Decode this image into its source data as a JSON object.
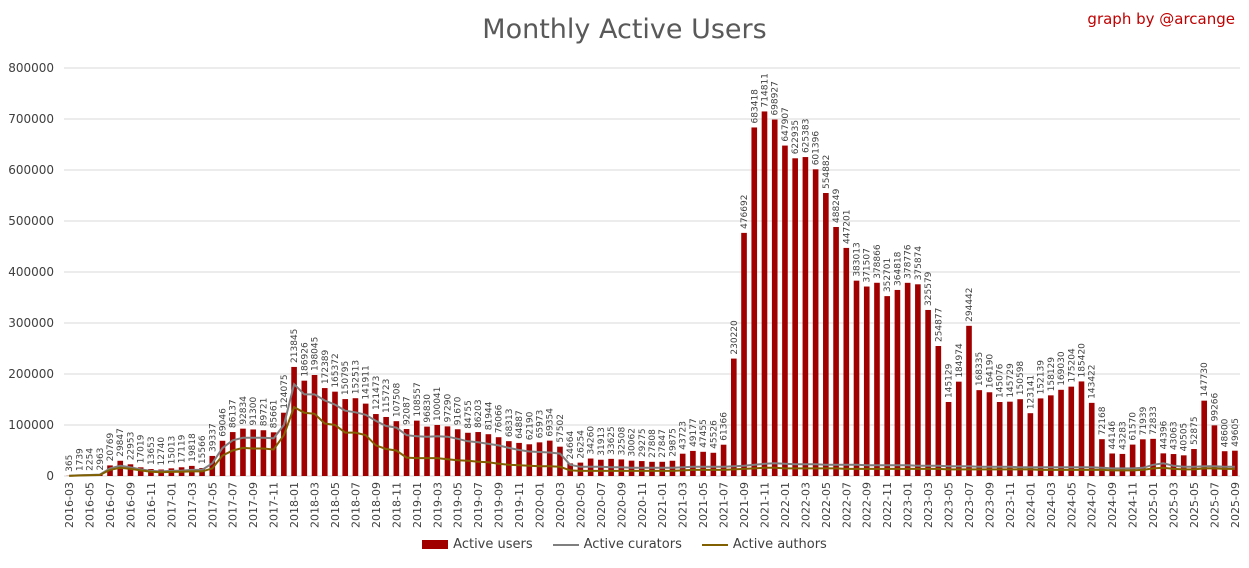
{
  "title": "Monthly Active Users",
  "credit": "graph by @arcange",
  "colors": {
    "users": "#a00000",
    "curators": "#7f7f7f",
    "authors": "#806000",
    "grid": "#d9d9d9",
    "axis_text": "#404040"
  },
  "chart_data": {
    "type": "bar",
    "title": "Monthly Active Users",
    "ylim": [
      0,
      800000
    ],
    "yticks": [
      0,
      100000,
      200000,
      300000,
      400000,
      500000,
      600000,
      700000,
      800000
    ],
    "legend": "bottom",
    "categories": [
      "2016-03",
      "2016-04",
      "2016-05",
      "2016-06",
      "2016-07",
      "2016-08",
      "2016-09",
      "2016-10",
      "2016-11",
      "2016-12",
      "2017-01",
      "2017-02",
      "2017-03",
      "2017-04",
      "2017-05",
      "2017-06",
      "2017-07",
      "2017-08",
      "2017-09",
      "2017-10",
      "2017-11",
      "2017-12",
      "2018-01",
      "2018-02",
      "2018-03",
      "2018-04",
      "2018-05",
      "2018-06",
      "2018-07",
      "2018-08",
      "2018-09",
      "2018-10",
      "2018-11",
      "2018-12",
      "2019-01",
      "2019-02",
      "2019-03",
      "2019-04",
      "2019-05",
      "2019-06",
      "2019-07",
      "2019-08",
      "2019-09",
      "2019-10",
      "2019-11",
      "2019-12",
      "2020-01",
      "2020-02",
      "2020-03",
      "2020-04",
      "2020-05",
      "2020-06",
      "2020-07",
      "2020-08",
      "2020-09",
      "2020-10",
      "2020-11",
      "2020-12",
      "2021-01",
      "2021-02",
      "2021-03",
      "2021-04",
      "2021-05",
      "2021-06",
      "2021-07",
      "2021-08",
      "2021-09",
      "2021-10",
      "2021-11",
      "2021-12",
      "2022-01",
      "2022-02",
      "2022-03",
      "2022-04",
      "2022-05",
      "2022-06",
      "2022-07",
      "2022-08",
      "2022-09",
      "2022-10",
      "2022-11",
      "2022-12",
      "2023-01",
      "2023-02",
      "2023-03",
      "2023-04",
      "2023-05",
      "2023-06",
      "2023-07",
      "2023-08",
      "2023-09",
      "2023-10",
      "2023-11",
      "2023-12",
      "2024-01",
      "2024-02",
      "2024-03",
      "2024-04",
      "2024-05",
      "2024-06",
      "2024-07",
      "2024-08",
      "2024-09",
      "2024-10",
      "2024-11",
      "2024-12",
      "2025-01",
      "2025-02",
      "2025-03",
      "2025-04",
      "2025-05",
      "2025-06",
      "2025-07",
      "2025-08",
      "2025-09"
    ],
    "series": [
      {
        "name": "Active users",
        "kind": "bar",
        "values": [
          365,
          1739,
          2254,
          2963,
          20769,
          29847,
          22953,
          17019,
          13653,
          12740,
          15013,
          17119,
          19818,
          15566,
          39337,
          69046,
          86137,
          92834,
          91300,
          89721,
          85661,
          124075,
          213845,
          186926,
          198045,
          172389,
          165372,
          150795,
          152513,
          141911,
          121473,
          115723,
          107508,
          92087,
          108557,
          96830,
          100041,
          97290,
          91670,
          84755,
          86203,
          81944,
          76066,
          68313,
          64887,
          62190,
          65973,
          69354,
          57502,
          24664,
          26254,
          34260,
          31913,
          33625,
          32508,
          30062,
          29275,
          27808,
          27847,
          29875,
          43723,
          49177,
          47455,
          45526,
          61366,
          230220,
          476692,
          683418,
          714811,
          698927,
          647907,
          622935,
          625383,
          601396,
          554882,
          488249,
          447201,
          383013,
          371507,
          378866,
          352701,
          364818,
          378776,
          375874,
          325579,
          254877,
          145129,
          184974,
          294442,
          168335,
          164190,
          145076,
          145729,
          150598,
          123141,
          152139,
          158129,
          169030,
          175204,
          185420,
          143422,
          72168,
          44146,
          43283,
          61570,
          71939,
          72833,
          44396,
          43063,
          40505,
          52875,
          147730,
          99266,
          48600,
          49605
        ]
      },
      {
        "name": "Active curators",
        "kind": "line",
        "values": [
          300,
          1500,
          2000,
          2700,
          15000,
          20000,
          17000,
          13000,
          10000,
          9000,
          10000,
          10500,
          12000,
          12000,
          25000,
          55000,
          70000,
          75000,
          75000,
          75000,
          74000,
          100000,
          180000,
          160000,
          160000,
          148000,
          140000,
          128000,
          125000,
          120000,
          108000,
          98000,
          95000,
          80000,
          78000,
          77000,
          78000,
          77000,
          73000,
          68000,
          66000,
          63000,
          60000,
          55000,
          51000,
          48000,
          47000,
          46000,
          44000,
          22000,
          18000,
          18000,
          18000,
          17000,
          17000,
          16000,
          16000,
          16000,
          16000,
          16000,
          17000,
          18000,
          18000,
          18000,
          18000,
          19000,
          20000,
          22000,
          24000,
          25000,
          24000,
          23000,
          23000,
          23000,
          22000,
          22000,
          22000,
          22000,
          21000,
          21000,
          21000,
          21000,
          21000,
          20000,
          20000,
          20000,
          19000,
          19000,
          19000,
          18000,
          18000,
          18000,
          18000,
          17000,
          17000,
          17000,
          17000,
          17000,
          17000,
          17000,
          17000,
          16000,
          15000,
          15000,
          15000,
          16000,
          22000,
          25000,
          20000,
          18000,
          18000,
          19000,
          19000,
          18000,
          18000
        ]
      },
      {
        "name": "Active authors",
        "kind": "line",
        "values": [
          200,
          1000,
          1500,
          2000,
          12000,
          16000,
          14000,
          11000,
          8500,
          7500,
          8000,
          8500,
          9000,
          9000,
          15000,
          40000,
          50000,
          55000,
          54000,
          54000,
          52000,
          80000,
          135000,
          124000,
          122000,
          103000,
          100000,
          85000,
          85000,
          80000,
          60000,
          53000,
          50000,
          36000,
          35000,
          35000,
          35000,
          33000,
          31000,
          30000,
          28000,
          27000,
          24000,
          22000,
          21000,
          20000,
          19000,
          19000,
          18000,
          11000,
          10000,
          10000,
          10000,
          10000,
          10000,
          10000,
          10000,
          10000,
          10000,
          10000,
          11000,
          12000,
          12000,
          12000,
          12000,
          13000,
          14000,
          15000,
          16000,
          16000,
          15000,
          15000,
          15000,
          15000,
          15000,
          15000,
          14000,
          14000,
          14000,
          14000,
          14000,
          14000,
          14000,
          14000,
          14000,
          14000,
          13000,
          13000,
          13000,
          13000,
          13000,
          13000,
          13000,
          13000,
          13000,
          12000,
          12000,
          12000,
          12000,
          12000,
          12000,
          12000,
          11000,
          11000,
          11000,
          12000,
          15000,
          16000,
          14000,
          13000,
          13000,
          15000,
          15000,
          14000,
          14000
        ]
      }
    ]
  }
}
